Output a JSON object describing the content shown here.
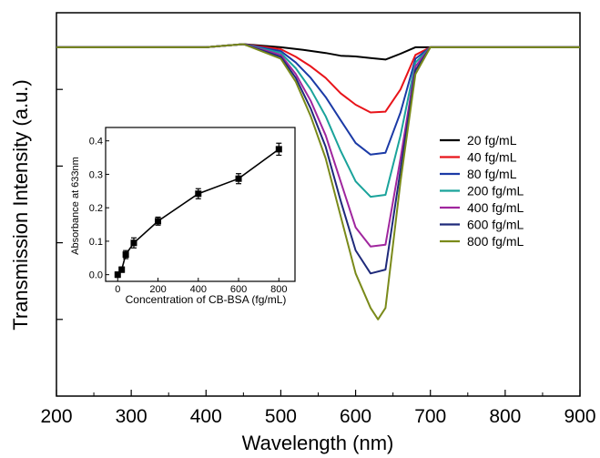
{
  "chart_data": [
    {
      "type": "line",
      "title": "",
      "xlabel": "Wavelength (nm)",
      "ylabel": "Transmission Intensity (a.u.)",
      "xlim": [
        200,
        900
      ],
      "ylim": [
        0,
        1
      ],
      "x_ticks": [
        200,
        300,
        400,
        500,
        600,
        700,
        800,
        900
      ],
      "y_tick_labels_shown": false,
      "grid": false,
      "legend_position": "right",
      "baseline_value": 0.91,
      "series": [
        {
          "name": "20 fg/mL",
          "color": "#000000",
          "points": [
            [
              200,
              0.91
            ],
            [
              300,
              0.91
            ],
            [
              400,
              0.91
            ],
            [
              450,
              0.918
            ],
            [
              500,
              0.91
            ],
            [
              530,
              0.903
            ],
            [
              560,
              0.895
            ],
            [
              580,
              0.888
            ],
            [
              600,
              0.886
            ],
            [
              620,
              0.882
            ],
            [
              640,
              0.878
            ],
            [
              660,
              0.893
            ],
            [
              680,
              0.91
            ],
            [
              900,
              0.91
            ]
          ]
        },
        {
          "name": "40 fg/mL",
          "color": "#e8141a",
          "points": [
            [
              200,
              0.91
            ],
            [
              300,
              0.91
            ],
            [
              400,
              0.91
            ],
            [
              450,
              0.918
            ],
            [
              500,
              0.905
            ],
            [
              520,
              0.885
            ],
            [
              540,
              0.86
            ],
            [
              560,
              0.83
            ],
            [
              580,
              0.79
            ],
            [
              600,
              0.76
            ],
            [
              620,
              0.74
            ],
            [
              640,
              0.742
            ],
            [
              660,
              0.8
            ],
            [
              680,
              0.89
            ],
            [
              700,
              0.91
            ],
            [
              900,
              0.91
            ]
          ]
        },
        {
          "name": "80 fg/mL",
          "color": "#1b3aa6",
          "points": [
            [
              200,
              0.91
            ],
            [
              300,
              0.91
            ],
            [
              400,
              0.91
            ],
            [
              450,
              0.918
            ],
            [
              500,
              0.9
            ],
            [
              520,
              0.87
            ],
            [
              540,
              0.83
            ],
            [
              560,
              0.78
            ],
            [
              580,
              0.72
            ],
            [
              600,
              0.66
            ],
            [
              620,
              0.63
            ],
            [
              640,
              0.635
            ],
            [
              660,
              0.74
            ],
            [
              680,
              0.88
            ],
            [
              700,
              0.91
            ],
            [
              900,
              0.91
            ]
          ]
        },
        {
          "name": "200 fg/mL",
          "color": "#1aa39b",
          "points": [
            [
              200,
              0.91
            ],
            [
              300,
              0.91
            ],
            [
              400,
              0.91
            ],
            [
              450,
              0.918
            ],
            [
              500,
              0.895
            ],
            [
              520,
              0.855
            ],
            [
              540,
              0.8
            ],
            [
              560,
              0.73
            ],
            [
              580,
              0.64
            ],
            [
              600,
              0.56
            ],
            [
              620,
              0.52
            ],
            [
              640,
              0.525
            ],
            [
              660,
              0.68
            ],
            [
              680,
              0.87
            ],
            [
              700,
              0.91
            ],
            [
              900,
              0.91
            ]
          ]
        },
        {
          "name": "400 fg/mL",
          "color": "#a0269e",
          "points": [
            [
              200,
              0.91
            ],
            [
              300,
              0.91
            ],
            [
              400,
              0.91
            ],
            [
              450,
              0.918
            ],
            [
              500,
              0.89
            ],
            [
              520,
              0.84
            ],
            [
              540,
              0.77
            ],
            [
              560,
              0.68
            ],
            [
              580,
              0.56
            ],
            [
              600,
              0.44
            ],
            [
              620,
              0.39
            ],
            [
              640,
              0.395
            ],
            [
              660,
              0.62
            ],
            [
              680,
              0.86
            ],
            [
              700,
              0.91
            ],
            [
              900,
              0.91
            ]
          ]
        },
        {
          "name": "600 fg/mL",
          "color": "#1f2a7a",
          "points": [
            [
              200,
              0.91
            ],
            [
              300,
              0.91
            ],
            [
              400,
              0.91
            ],
            [
              450,
              0.918
            ],
            [
              500,
              0.885
            ],
            [
              520,
              0.83
            ],
            [
              540,
              0.75
            ],
            [
              560,
              0.65
            ],
            [
              580,
              0.51
            ],
            [
              600,
              0.38
            ],
            [
              620,
              0.32
            ],
            [
              640,
              0.33
            ],
            [
              660,
              0.59
            ],
            [
              680,
              0.85
            ],
            [
              700,
              0.91
            ],
            [
              900,
              0.91
            ]
          ]
        },
        {
          "name": "800 fg/mL",
          "color": "#7a8a1a",
          "points": [
            [
              200,
              0.91
            ],
            [
              300,
              0.91
            ],
            [
              400,
              0.91
            ],
            [
              450,
              0.918
            ],
            [
              500,
              0.88
            ],
            [
              520,
              0.82
            ],
            [
              540,
              0.73
            ],
            [
              560,
              0.62
            ],
            [
              580,
              0.47
            ],
            [
              600,
              0.32
            ],
            [
              620,
              0.23
            ],
            [
              630,
              0.2
            ],
            [
              640,
              0.23
            ],
            [
              660,
              0.56
            ],
            [
              680,
              0.84
            ],
            [
              700,
              0.91
            ],
            [
              900,
              0.91
            ]
          ]
        }
      ]
    },
    {
      "type": "scatter",
      "title": "",
      "xlabel": "Concentration of CB-BSA (fg/mL)",
      "ylabel": "Absorbance at 633nm",
      "xlim": [
        -60,
        880
      ],
      "ylim": [
        -0.02,
        0.44
      ],
      "x_ticks": [
        0,
        200,
        400,
        600,
        800
      ],
      "y_ticks": [
        0.0,
        0.1,
        0.2,
        0.3,
        0.4
      ],
      "y_tick_labels": [
        "0.0",
        "0.1",
        "0.2",
        "0.3",
        "0.4"
      ],
      "series": [
        {
          "name": "",
          "color": "#000000",
          "x": [
            0,
            20,
            40,
            80,
            200,
            400,
            600,
            800
          ],
          "y": [
            0.0,
            0.015,
            0.06,
            0.095,
            0.16,
            0.242,
            0.287,
            0.375
          ],
          "error": [
            0.008,
            0.008,
            0.012,
            0.015,
            0.012,
            0.015,
            0.015,
            0.018
          ]
        }
      ]
    }
  ]
}
